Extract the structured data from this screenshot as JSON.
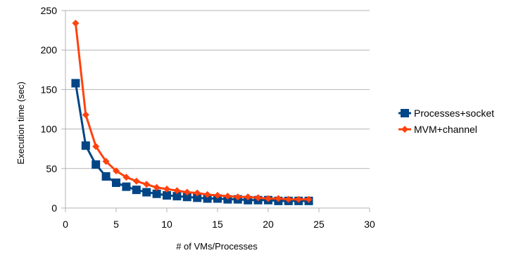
{
  "chart_data": {
    "type": "line",
    "title": "",
    "xlabel": "# of VMs/Processes",
    "ylabel": "Execution time (sec)",
    "xlim": [
      0,
      30
    ],
    "ylim": [
      0,
      250
    ],
    "x_ticks": [
      0,
      5,
      10,
      15,
      20,
      25,
      30
    ],
    "y_ticks": [
      0,
      50,
      100,
      150,
      200,
      250
    ],
    "grid": "horizontal",
    "legend_position": "right",
    "x": [
      1,
      2,
      3,
      4,
      5,
      6,
      7,
      8,
      9,
      10,
      11,
      12,
      13,
      14,
      15,
      16,
      17,
      18,
      19,
      20,
      21,
      22,
      23,
      24
    ],
    "series": [
      {
        "name": "Processes+socket",
        "color": "#004586",
        "marker": "square",
        "values": [
          158,
          79,
          55,
          40,
          32,
          27,
          23,
          20,
          18,
          16,
          15,
          14,
          13,
          12,
          12,
          11,
          11,
          10,
          10,
          10,
          9,
          9,
          9,
          9
        ]
      },
      {
        "name": "MVM+channel",
        "color": "#ff420e",
        "marker": "diamond",
        "values": [
          234,
          118,
          78,
          59,
          47,
          39,
          34,
          30,
          26,
          24,
          22,
          20,
          19,
          17,
          16,
          15,
          14,
          14,
          13,
          12,
          12,
          11,
          11,
          11
        ]
      }
    ]
  }
}
